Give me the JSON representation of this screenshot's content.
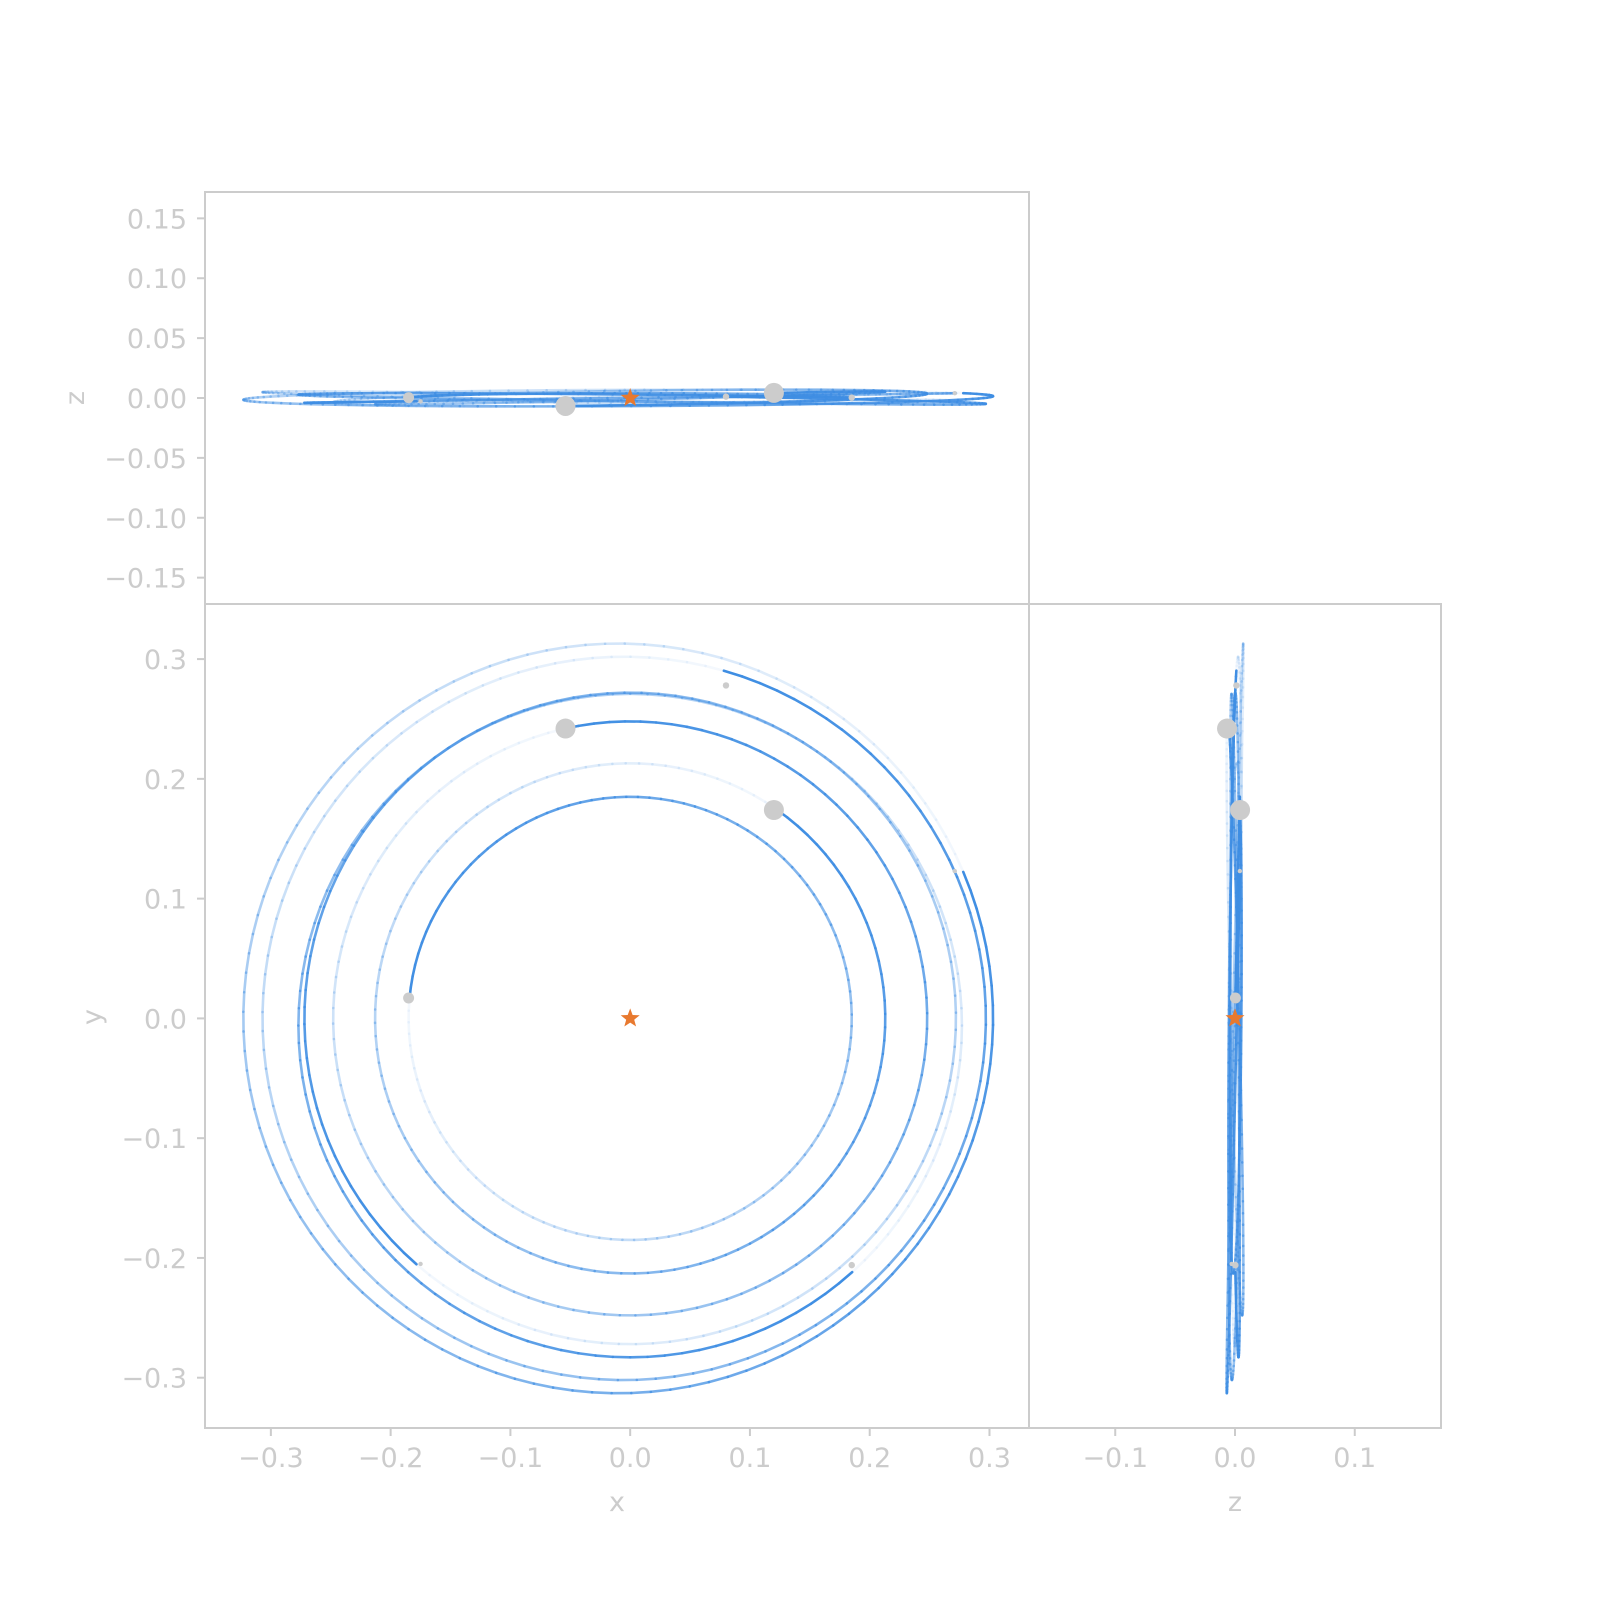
{
  "colors": {
    "orbit": "#3f8ee3",
    "planet": "#cccccc",
    "star": "#e8792f",
    "frame": "#cccccc",
    "text": "#cccccc"
  },
  "chart_data": [
    {
      "panel": "top",
      "type": "line",
      "xlabel": "",
      "ylabel": "z",
      "xlim": [
        -0.355,
        0.333
      ],
      "ylim": [
        -0.172,
        0.172
      ],
      "yticks": [
        -0.15,
        -0.1,
        -0.05,
        0.0,
        0.05,
        0.1,
        0.15
      ],
      "ytick_labels": [
        "−0.15",
        "−0.10",
        "−0.05",
        "0.00",
        "0.05",
        "0.10",
        "0.15"
      ],
      "show_xticks": false
    },
    {
      "panel": "main",
      "type": "line",
      "xlabel": "x",
      "ylabel": "y",
      "xlim": [
        -0.355,
        0.333
      ],
      "ylim": [
        -0.342,
        0.346
      ],
      "xticks": [
        -0.3,
        -0.2,
        -0.1,
        0.0,
        0.1,
        0.2,
        0.3
      ],
      "xtick_labels": [
        "−0.3",
        "−0.2",
        "−0.1",
        "0.0",
        "0.1",
        "0.2",
        "0.3"
      ],
      "yticks": [
        -0.3,
        -0.2,
        -0.1,
        0.0,
        0.1,
        0.2,
        0.3
      ],
      "ytick_labels": [
        "−0.3",
        "−0.2",
        "−0.1",
        "0.0",
        "0.1",
        "0.2",
        "0.3"
      ]
    },
    {
      "panel": "right",
      "type": "line",
      "xlabel": "z",
      "ylabel": "",
      "xlim": [
        -0.172,
        0.172
      ],
      "ylim": [
        -0.342,
        0.346
      ],
      "xticks": [
        -0.1,
        0.0,
        0.1
      ],
      "xtick_labels": [
        "−0.1",
        "0.0",
        "0.1"
      ],
      "show_yticks": false
    }
  ],
  "orbits": [
    {
      "name": "",
      "cx": 0.0,
      "cy": 0.0,
      "r": 0.185,
      "start_deg": 175,
      "span_deg": 360,
      "marker": {
        "x": -0.185,
        "y": 0.017,
        "size": "medium"
      }
    },
    {
      "name": "",
      "cx": 0.0,
      "cy": 0.0,
      "r": 0.213,
      "start_deg": 55,
      "span_deg": 360,
      "marker": {
        "x": 0.12,
        "y": 0.174,
        "size": "large"
      }
    },
    {
      "name": "",
      "cx": 0.0,
      "cy": 0.0,
      "r": 0.248,
      "start_deg": 103,
      "span_deg": 360,
      "marker": {
        "x": -0.054,
        "y": 0.242,
        "size": "large"
      }
    },
    {
      "name": "",
      "cx": 0.0,
      "cy": -0.006,
      "r": 0.277,
      "start_deg": -48,
      "span_deg": 360,
      "marker": {
        "x": 0.185,
        "y": -0.206,
        "size": "small"
      }
    },
    {
      "name": "",
      "cx": -0.005,
      "cy": 0.0,
      "r": 0.302,
      "start_deg": 74,
      "span_deg": 360,
      "marker": {
        "x": 0.08,
        "y": 0.278,
        "size": "small"
      }
    },
    {
      "name": "",
      "cx": -0.01,
      "cy": 0.0,
      "r": 0.313,
      "start_deg": 23,
      "span_deg": 360,
      "marker": {
        "x": 0.271,
        "y": 0.123,
        "size": "tiny"
      }
    },
    {
      "name": "",
      "cx": 0.0,
      "cy": 0.0,
      "r": 0.272,
      "start_deg": -131,
      "span_deg": 360,
      "marker": {
        "x": -0.175,
        "y": -0.205,
        "size": "tiny"
      }
    }
  ],
  "star": {
    "x": 0.0,
    "y": 0.0,
    "z": 0.0
  }
}
